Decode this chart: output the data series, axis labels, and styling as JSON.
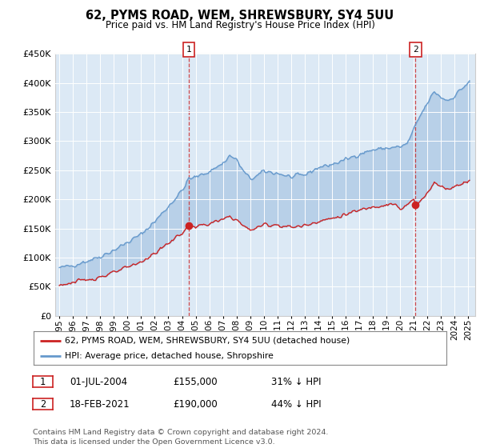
{
  "title": "62, PYMS ROAD, WEM, SHREWSBURY, SY4 5UU",
  "subtitle": "Price paid vs. HM Land Registry's House Price Index (HPI)",
  "bg_color": "#ffffff",
  "plot_bg_color": "#dce9f5",
  "legend_label_red": "62, PYMS ROAD, WEM, SHREWSBURY, SY4 5UU (detached house)",
  "legend_label_blue": "HPI: Average price, detached house, Shropshire",
  "footer": "Contains HM Land Registry data © Crown copyright and database right 2024.\nThis data is licensed under the Open Government Licence v3.0.",
  "annotation1_date": "01-JUL-2004",
  "annotation1_price": "£155,000",
  "annotation1_pct": "31% ↓ HPI",
  "annotation2_date": "18-FEB-2021",
  "annotation2_price": "£190,000",
  "annotation2_pct": "44% ↓ HPI",
  "ylim": [
    0,
    450000
  ],
  "yticks": [
    0,
    50000,
    100000,
    150000,
    200000,
    250000,
    300000,
    350000,
    400000,
    450000
  ],
  "hpi_color": "#6699cc",
  "price_color": "#cc2222",
  "marker1_x": 2004.5,
  "marker2_x": 2021.12,
  "sale1_y": 155000,
  "sale2_y": 190000,
  "xmin": 1994.7,
  "xmax": 2025.5
}
